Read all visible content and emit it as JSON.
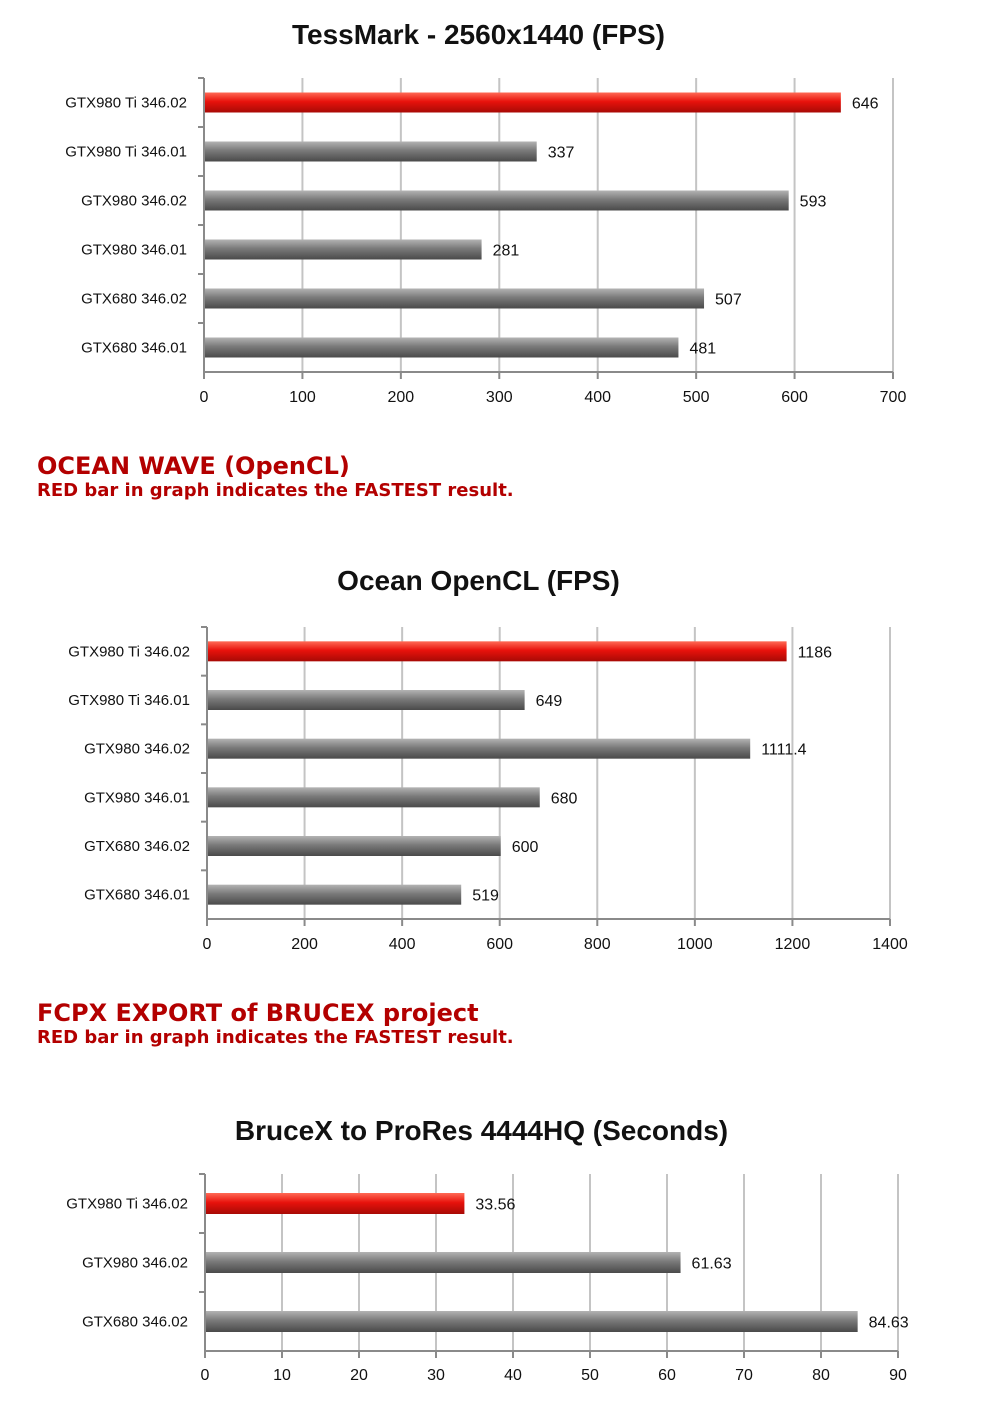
{
  "chart_data": [
    {
      "type": "bar",
      "orientation": "horizontal",
      "title": "TessMark - 2560x1440 (FPS)",
      "categories": [
        "GTX980 Ti 346.02",
        "GTX980 Ti 346.01",
        "GTX980 346.02",
        "GTX980 346.01",
        "GTX680 346.02",
        "GTX680 346.01"
      ],
      "values": [
        646,
        337,
        593,
        281,
        507,
        481
      ],
      "value_labels": [
        "646",
        "337",
        "593",
        "281",
        "507",
        "481"
      ],
      "highlight_index": 0,
      "xlim": [
        0,
        700
      ],
      "xticks": [
        0,
        100,
        200,
        300,
        400,
        500,
        600,
        700
      ],
      "grid": true,
      "legend": "none",
      "bar_color": "#7a7a7a",
      "highlight_color": "#e8120c"
    },
    {
      "type": "bar",
      "orientation": "horizontal",
      "title": "Ocean OpenCL (FPS)",
      "categories": [
        "GTX980 Ti 346.02",
        "GTX980 Ti 346.01",
        "GTX980 346.02",
        "GTX980 346.01",
        "GTX680 346.02",
        "GTX680 346.01"
      ],
      "values": [
        1186,
        649,
        1111.4,
        680,
        600,
        519
      ],
      "value_labels": [
        "1186",
        "649",
        "1111.4",
        "680",
        "600",
        "519"
      ],
      "highlight_index": 0,
      "xlim": [
        0,
        1400
      ],
      "xticks": [
        0,
        200,
        400,
        600,
        800,
        1000,
        1200,
        1400
      ],
      "grid": true,
      "legend": "none",
      "bar_color": "#7a7a7a",
      "highlight_color": "#e8120c"
    },
    {
      "type": "bar",
      "orientation": "horizontal",
      "title": "BruceX to ProRes 4444HQ (Seconds)",
      "categories": [
        "GTX980 Ti 346.02",
        "GTX980 346.02",
        "GTX680 346.02"
      ],
      "values": [
        33.56,
        61.63,
        84.63
      ],
      "value_labels": [
        "33.56",
        "61.63",
        "84.63"
      ],
      "highlight_index": 0,
      "xlim": [
        0,
        90
      ],
      "xticks": [
        0,
        10,
        20,
        30,
        40,
        50,
        60,
        70,
        80,
        90
      ],
      "grid": true,
      "legend": "none",
      "bar_color": "#7a7a7a",
      "highlight_color": "#e8120c"
    }
  ],
  "sections": [
    {
      "title": "OCEAN WAVE (OpenCL)",
      "note": "RED bar in graph indicates the FASTEST result."
    },
    {
      "title": "FCPX EXPORT of BRUCEX project",
      "note": "RED bar in graph indicates the FASTEST result."
    }
  ],
  "colors": {
    "section_text": "#b30000",
    "gridline": "#c4c4c4",
    "axis": "#8a8a8a"
  }
}
